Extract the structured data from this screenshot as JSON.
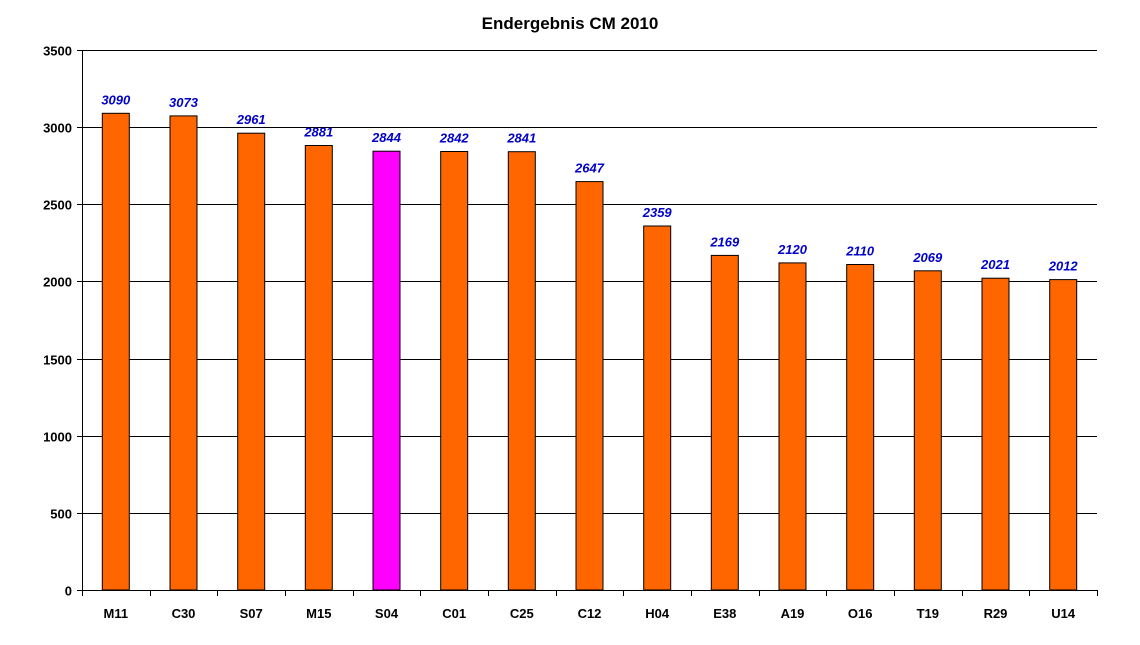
{
  "chart_data": {
    "type": "bar",
    "title": "Endergebnis CM 2010",
    "xlabel": "",
    "ylabel": "",
    "categories": [
      "M11",
      "C30",
      "S07",
      "M15",
      "S04",
      "C01",
      "C25",
      "C12",
      "H04",
      "E38",
      "A19",
      "O16",
      "T19",
      "R29",
      "U14"
    ],
    "values": [
      3090,
      3073,
      2961,
      2881,
      2844,
      2842,
      2841,
      2647,
      2359,
      2169,
      2120,
      2110,
      2069,
      2021,
      2012
    ],
    "data_labels": [
      "3090",
      "3073",
      "2961",
      "2881",
      "2844",
      "2842",
      "2841",
      "2647",
      "2359",
      "2169",
      "2120",
      "2110",
      "2069",
      "2021",
      "2012"
    ],
    "ylim": [
      0,
      3500
    ],
    "yticks": [
      0,
      500,
      1000,
      1500,
      2000,
      2500,
      3000,
      3500
    ],
    "ytick_labels": [
      "0",
      "500",
      "1000",
      "1500",
      "2000",
      "2500",
      "3000",
      "3500"
    ],
    "grid": true,
    "legend": "none",
    "highlight_category": "S04",
    "colors": {
      "bar": "#ff6600",
      "highlight_bar": "#ff00ff",
      "bar_outline": "#000000",
      "data_label": "#0000cc",
      "gridline": "#000000",
      "axis": "#000000"
    }
  }
}
